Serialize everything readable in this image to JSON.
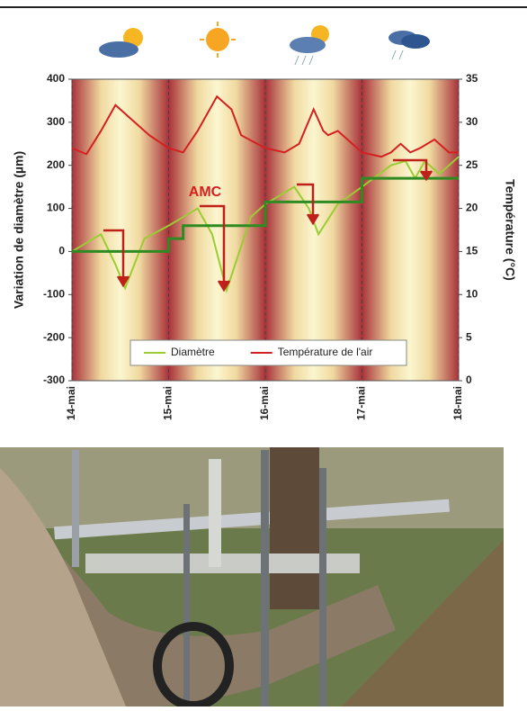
{
  "chart_data": {
    "type": "line",
    "xlim": [
      0,
      4
    ],
    "xticks": [
      {
        "value": 0,
        "label": "14-mai"
      },
      {
        "value": 1,
        "label": "15-mai"
      },
      {
        "value": 2,
        "label": "16-mai"
      },
      {
        "value": 3,
        "label": "17-mai"
      },
      {
        "value": 4,
        "label": "18-mai"
      }
    ],
    "ylim": [
      -300,
      400
    ],
    "yticks": [
      -300,
      -200,
      -100,
      0,
      100,
      200,
      300,
      400
    ],
    "y2lim": [
      0,
      35
    ],
    "y2ticks": [
      0,
      5,
      10,
      15,
      20,
      25,
      30,
      35
    ],
    "ylabel": "Variation de diamètre (µm)",
    "y2label": "Température (°C)",
    "annotation": "AMC",
    "series": [
      {
        "name": "Diamètre",
        "color": "#9acd32",
        "x": [
          0,
          0.3,
          0.45,
          0.55,
          0.75,
          1.0,
          1.3,
          1.45,
          1.6,
          1.85,
          2.0,
          2.3,
          2.45,
          2.55,
          2.75,
          3.0,
          3.3,
          3.45,
          3.55,
          3.65,
          3.8,
          4.0
        ],
        "values": [
          0,
          40,
          -30,
          -85,
          30,
          60,
          100,
          40,
          -90,
          80,
          110,
          150,
          100,
          40,
          110,
          150,
          200,
          210,
          170,
          210,
          180,
          220
        ]
      },
      {
        "name": "Température de l'air",
        "color": "#d42020",
        "axis": "y2",
        "x": [
          0,
          0.15,
          0.3,
          0.45,
          0.6,
          0.8,
          1.0,
          1.15,
          1.3,
          1.5,
          1.65,
          1.75,
          2.0,
          2.2,
          2.35,
          2.5,
          2.6,
          2.65,
          2.75,
          2.85,
          3.0,
          3.2,
          3.3,
          3.4,
          3.5,
          3.6,
          3.75,
          3.9,
          4.0
        ],
        "values": [
          27,
          26.3,
          29,
          32,
          30.5,
          28.5,
          27,
          26.5,
          29,
          33,
          31.5,
          28.5,
          27,
          26.5,
          27.5,
          31.5,
          29,
          28.5,
          29,
          28,
          26.5,
          26,
          26.5,
          27.5,
          26.5,
          27,
          28,
          26.5,
          26.5
        ]
      },
      {
        "color": "#2e8b22",
        "step": true,
        "x": [
          0,
          1.0,
          1.0,
          1.15,
          1.15,
          2.0,
          2.0,
          3.0,
          3.0,
          4.0
        ],
        "values": [
          0,
          0,
          30,
          30,
          60,
          60,
          115,
          115,
          170,
          170
        ]
      }
    ]
  }
}
